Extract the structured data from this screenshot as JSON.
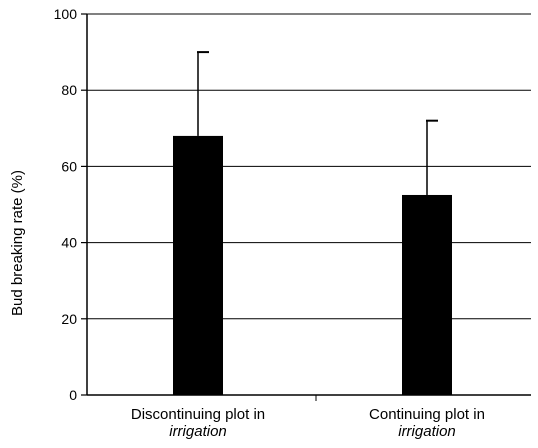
{
  "chart_data": {
    "type": "bar",
    "categories": [
      [
        "Discontinuing plot in",
        "irrigation"
      ],
      [
        "Continuing plot in",
        "irrigation"
      ]
    ],
    "values": [
      68,
      52.5
    ],
    "error_upper": [
      90,
      72
    ],
    "ylabel": "Bud breaking rate (%)",
    "ylim": [
      0,
      100
    ],
    "yticks": [
      0,
      20,
      40,
      60,
      80,
      100
    ],
    "grid": "horizontal",
    "bar_color": "#000000"
  }
}
